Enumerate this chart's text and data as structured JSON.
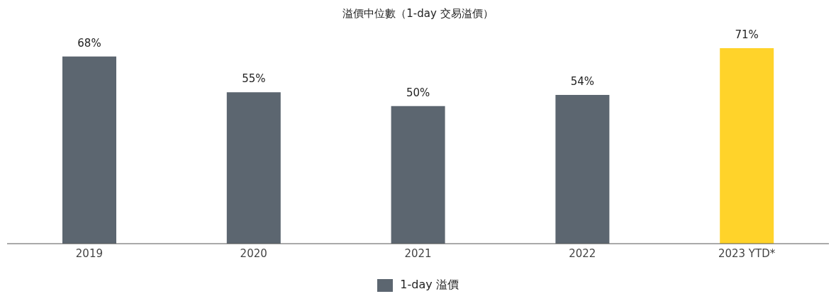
{
  "chart_data": {
    "type": "bar",
    "title": "溢價中位數（1-day 交易溢價）",
    "categories": [
      "2019",
      "2020",
      "2021",
      "2022",
      "2023 YTD*"
    ],
    "series": [
      {
        "name": "1-day 溢價",
        "color": "#5c6670",
        "colors": [
          "#5c6670",
          "#5c6670",
          "#5c6670",
          "#5c6670",
          "#ffd32a"
        ],
        "values": [
          68,
          55,
          50,
          54,
          71
        ],
        "value_labels": [
          "68%",
          "55%",
          "50%",
          "54%",
          "71%"
        ]
      }
    ],
    "legend": "bottom",
    "grid": false
  }
}
